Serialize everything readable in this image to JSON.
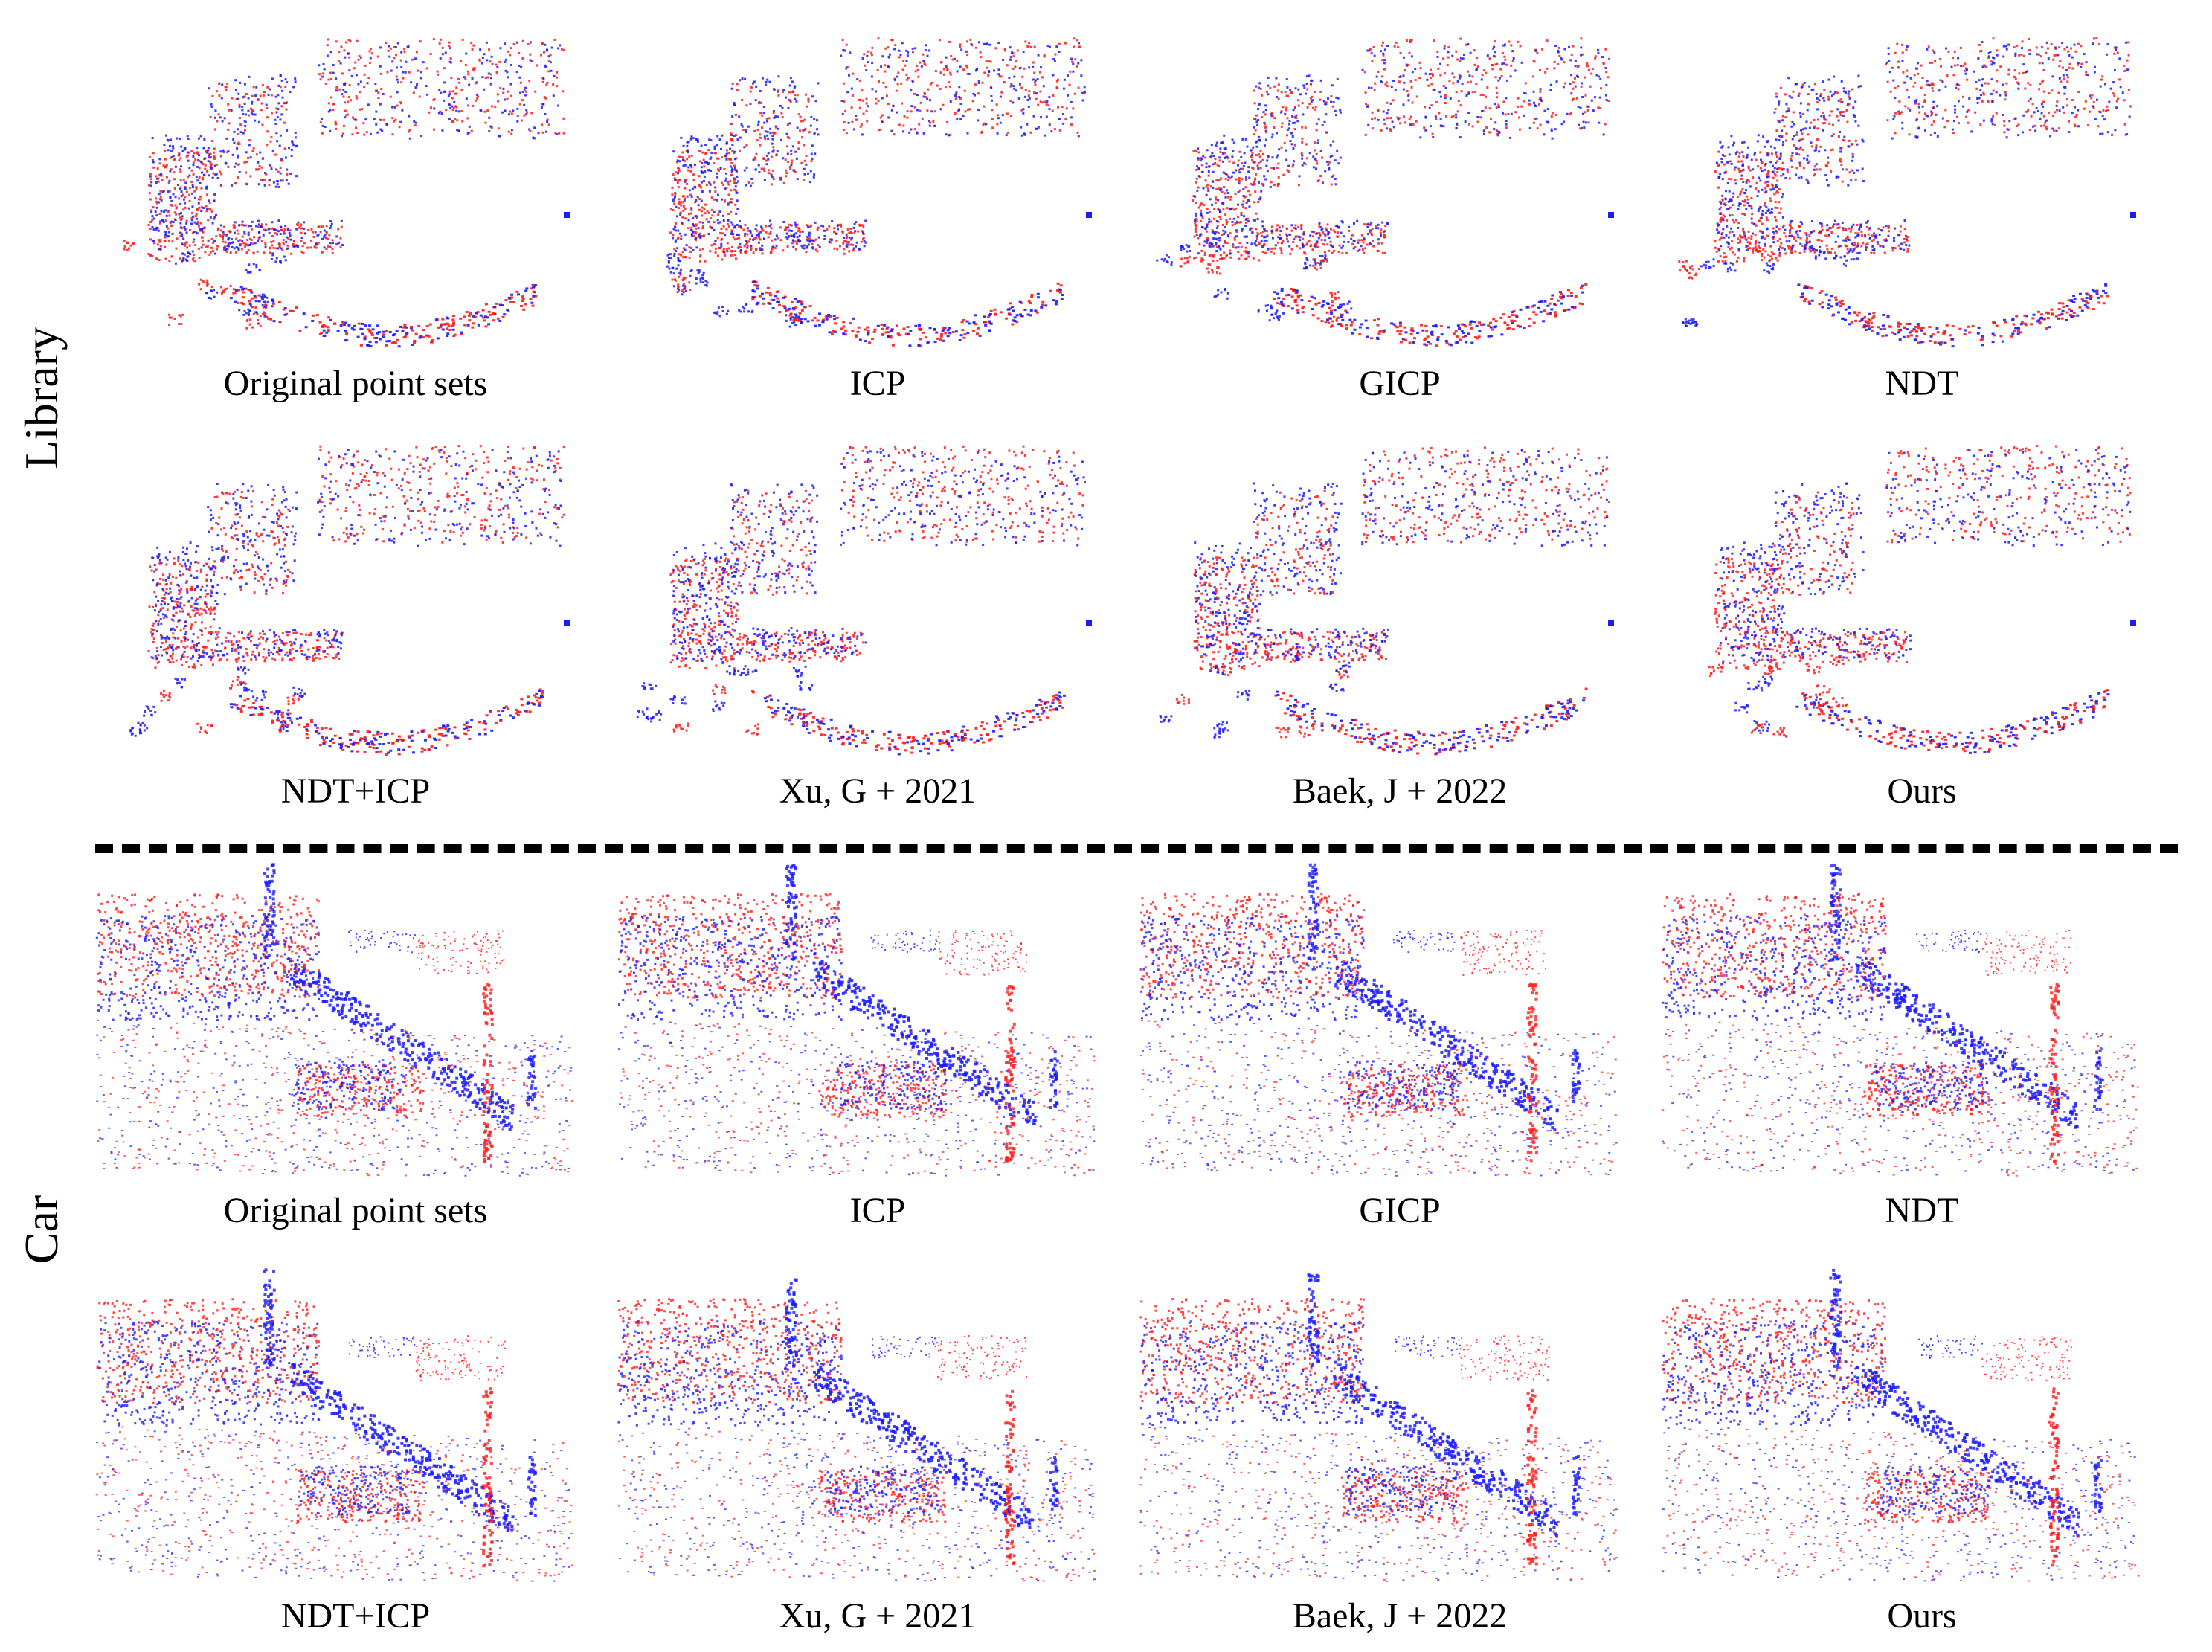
{
  "sections": [
    {
      "label": "Library",
      "rows": [
        [
          "Original point sets",
          "ICP",
          "GICP",
          "NDT"
        ],
        [
          "NDT+ICP",
          "Xu, G + 2021",
          "Baek, J + 2022",
          "Ours"
        ]
      ]
    },
    {
      "label": "Car",
      "rows": [
        [
          "Original point sets",
          "ICP",
          "GICP",
          "NDT"
        ],
        [
          "NDT+ICP",
          "Xu, G + 2021",
          "Baek, J + 2022",
          "Ours"
        ]
      ]
    }
  ],
  "colors": {
    "source_points": "#ff1a1a",
    "target_points": "#1a1aff",
    "divider": "#000000"
  }
}
